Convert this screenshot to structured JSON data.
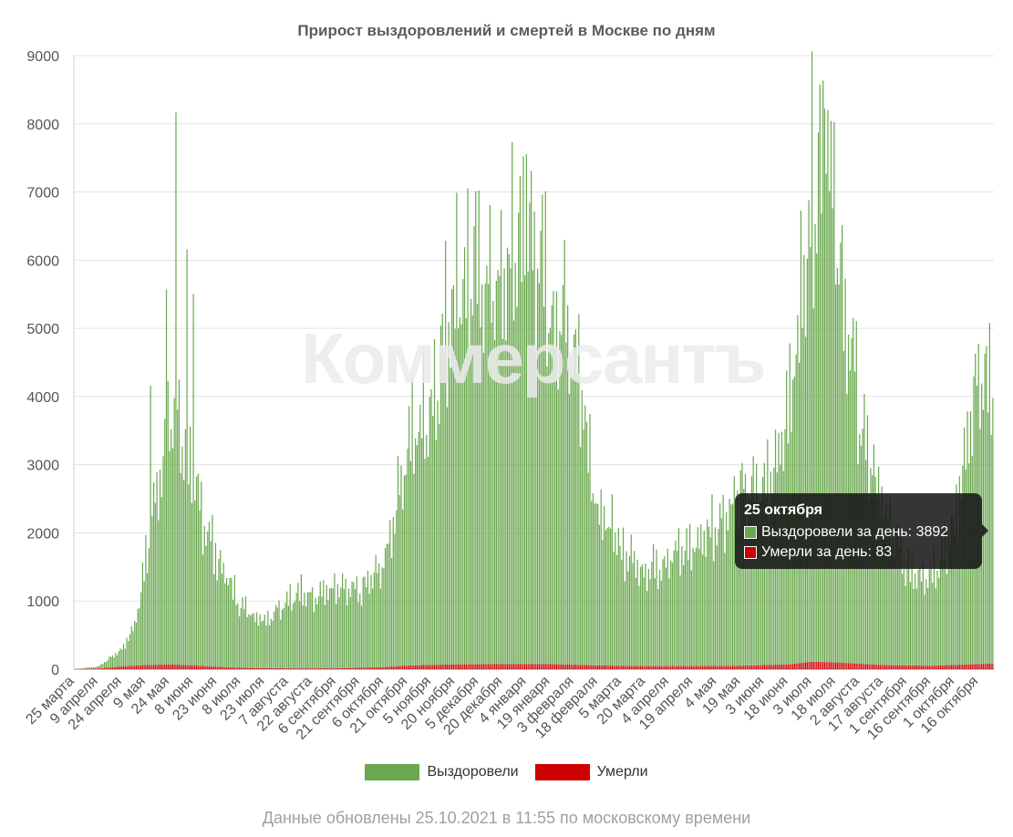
{
  "chart_data": {
    "type": "bar",
    "title": "Прирост выздоровлений и смертей в Москве по дням",
    "stacked": true,
    "ylim": [
      0,
      9000
    ],
    "yticks": [
      0,
      1000,
      2000,
      3000,
      4000,
      5000,
      6000,
      7000,
      8000,
      9000
    ],
    "x_start": "2020-03-25",
    "x_end": "2021-10-25",
    "xtick_labels": [
      "25 марта",
      "9 апреля",
      "24 апреля",
      "9 мая",
      "24 мая",
      "8 июня",
      "23 июня",
      "8 июля",
      "23 июля",
      "7 августа",
      "22 августа",
      "6 сентября",
      "21 сентября",
      "6 октября",
      "21 октября",
      "5 ноября",
      "20 ноября",
      "5 декабря",
      "20 декабря",
      "4 января",
      "19 января",
      "3 февраля",
      "18 февраля",
      "5 марта",
      "20 марта",
      "4 апреля",
      "19 апреля",
      "4 мая",
      "19 мая",
      "3 июня",
      "18 июня",
      "3 июля",
      "18 июля",
      "2 августа",
      "17 августа",
      "1 сентября",
      "16 сентября",
      "1 октября",
      "16 октября"
    ],
    "series": [
      {
        "name": "Выздоровели",
        "color": "#6aa84f",
        "trend_points": [
          {
            "x": "2020-03-25",
            "y": 0
          },
          {
            "x": "2020-04-09",
            "y": 30
          },
          {
            "x": "2020-04-24",
            "y": 250
          },
          {
            "x": "2020-05-02",
            "y": 600
          },
          {
            "x": "2020-05-09",
            "y": 1500
          },
          {
            "x": "2020-05-20",
            "y": 3200
          },
          {
            "x": "2020-05-28",
            "y": 3800
          },
          {
            "x": "2020-06-08",
            "y": 2600
          },
          {
            "x": "2020-06-23",
            "y": 1600
          },
          {
            "x": "2020-07-08",
            "y": 900
          },
          {
            "x": "2020-07-23",
            "y": 700
          },
          {
            "x": "2020-08-07",
            "y": 1050
          },
          {
            "x": "2020-08-22",
            "y": 1100
          },
          {
            "x": "2020-09-06",
            "y": 1150
          },
          {
            "x": "2020-09-21",
            "y": 1100
          },
          {
            "x": "2020-10-06",
            "y": 1500
          },
          {
            "x": "2020-10-21",
            "y": 3200
          },
          {
            "x": "2020-11-05",
            "y": 3800
          },
          {
            "x": "2020-11-20",
            "y": 5600
          },
          {
            "x": "2020-12-05",
            "y": 5700
          },
          {
            "x": "2020-12-20",
            "y": 5500
          },
          {
            "x": "2021-01-04",
            "y": 6600
          },
          {
            "x": "2021-01-19",
            "y": 5200
          },
          {
            "x": "2021-02-03",
            "y": 4800
          },
          {
            "x": "2021-02-18",
            "y": 2300
          },
          {
            "x": "2021-03-05",
            "y": 1700
          },
          {
            "x": "2021-03-20",
            "y": 1400
          },
          {
            "x": "2021-04-04",
            "y": 1600
          },
          {
            "x": "2021-04-19",
            "y": 1750
          },
          {
            "x": "2021-05-04",
            "y": 2100
          },
          {
            "x": "2021-05-19",
            "y": 2500
          },
          {
            "x": "2021-06-03",
            "y": 2600
          },
          {
            "x": "2021-06-18",
            "y": 3600
          },
          {
            "x": "2021-07-03",
            "y": 6900
          },
          {
            "x": "2021-07-12",
            "y": 7800
          },
          {
            "x": "2021-07-18",
            "y": 6200
          },
          {
            "x": "2021-08-02",
            "y": 3600
          },
          {
            "x": "2021-08-17",
            "y": 2300
          },
          {
            "x": "2021-09-01",
            "y": 1400
          },
          {
            "x": "2021-09-16",
            "y": 1350
          },
          {
            "x": "2021-10-01",
            "y": 2000
          },
          {
            "x": "2021-10-08",
            "y": 3300
          },
          {
            "x": "2021-10-16",
            "y": 4100
          },
          {
            "x": "2021-10-25",
            "y": 3892
          }
        ]
      },
      {
        "name": "Умерли",
        "color": "#cc0000",
        "trend_points": [
          {
            "x": "2020-03-25",
            "y": 0
          },
          {
            "x": "2020-04-09",
            "y": 10
          },
          {
            "x": "2020-04-24",
            "y": 40
          },
          {
            "x": "2020-05-09",
            "y": 60
          },
          {
            "x": "2020-05-24",
            "y": 70
          },
          {
            "x": "2020-06-08",
            "y": 55
          },
          {
            "x": "2020-06-23",
            "y": 35
          },
          {
            "x": "2020-07-08",
            "y": 20
          },
          {
            "x": "2020-08-07",
            "y": 12
          },
          {
            "x": "2020-09-06",
            "y": 12
          },
          {
            "x": "2020-10-06",
            "y": 30
          },
          {
            "x": "2020-10-21",
            "y": 55
          },
          {
            "x": "2020-11-20",
            "y": 70
          },
          {
            "x": "2020-12-20",
            "y": 75
          },
          {
            "x": "2021-01-19",
            "y": 75
          },
          {
            "x": "2021-02-18",
            "y": 55
          },
          {
            "x": "2021-03-20",
            "y": 45
          },
          {
            "x": "2021-04-19",
            "y": 45
          },
          {
            "x": "2021-05-19",
            "y": 50
          },
          {
            "x": "2021-06-18",
            "y": 70
          },
          {
            "x": "2021-07-03",
            "y": 110
          },
          {
            "x": "2021-07-18",
            "y": 100
          },
          {
            "x": "2021-08-17",
            "y": 60
          },
          {
            "x": "2021-09-16",
            "y": 50
          },
          {
            "x": "2021-10-25",
            "y": 83
          }
        ]
      }
    ],
    "peaks": [
      {
        "x": "2020-05-28",
        "y": 8100
      },
      {
        "x": "2020-06-04",
        "y": 6100
      },
      {
        "x": "2020-06-08",
        "y": 5450
      },
      {
        "x": "2020-05-22",
        "y": 5500
      },
      {
        "x": "2020-05-12",
        "y": 4100
      },
      {
        "x": "2021-01-04",
        "y": 7480
      },
      {
        "x": "2021-07-11",
        "y": 8120
      },
      {
        "x": "2021-07-13",
        "y": 8100
      },
      {
        "x": "2020-12-05",
        "y": 6950
      },
      {
        "x": "2021-01-28",
        "y": 6230
      }
    ],
    "legend": {
      "position": "bottom",
      "entries": [
        "Выздоровели",
        "Умерли"
      ]
    },
    "grid": true
  },
  "legend_labels": {
    "recovered": "Выздоровели",
    "died": "Умерли"
  },
  "watermark": "Коммерсантъ",
  "tooltip": {
    "title": "25 октября",
    "recovered_text": "Выздоровели за день: 3892",
    "died_text": "Умерли за день: 83"
  },
  "footer": "Данные обновлены 25.10.2021 в 11:55 по московскому времени"
}
